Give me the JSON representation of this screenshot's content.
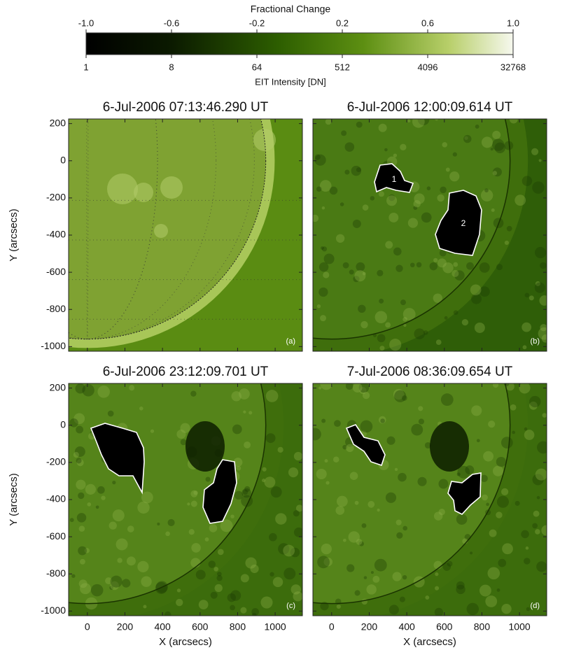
{
  "colorbar": {
    "title": "Fractional Change",
    "top_ticks": [
      {
        "value": -1,
        "label": "-1.0"
      },
      -0.6,
      -0.2,
      0.2,
      0.6,
      {
        "value": 1,
        "label": "1.0"
      }
    ],
    "top_lim": [
      -1,
      1
    ],
    "bottom_ticks": [
      1,
      8,
      64,
      512,
      4096,
      32768
    ],
    "bottom_lim": [
      1,
      32768
    ],
    "bottom_scale": "log",
    "label": "EIT Intensity [DN]"
  },
  "axes": {
    "xlabel": "X (arcsecs)",
    "ylabel": "Y (arcsecs)",
    "xlim": [
      -100,
      1145
    ],
    "ylim": [
      -1025,
      225
    ],
    "xticks": [
      0,
      200,
      400,
      600,
      800,
      1000
    ],
    "yticks": [
      200,
      0,
      -200,
      -400,
      -600,
      -800,
      -1000
    ]
  },
  "panels": [
    {
      "title": "6-Jul-2006 07:13:46.290 UT",
      "label": "(a)"
    },
    {
      "title": "6-Jul-2006 12:00:09.614 UT",
      "label": "(b)",
      "regions": [
        "1",
        "2"
      ]
    },
    {
      "title": "6-Jul-2006 23:12:09.701 UT",
      "label": "(c)"
    },
    {
      "title": "7-Jul-2006 08:36:09.654 UT",
      "label": "(d)"
    }
  ]
}
